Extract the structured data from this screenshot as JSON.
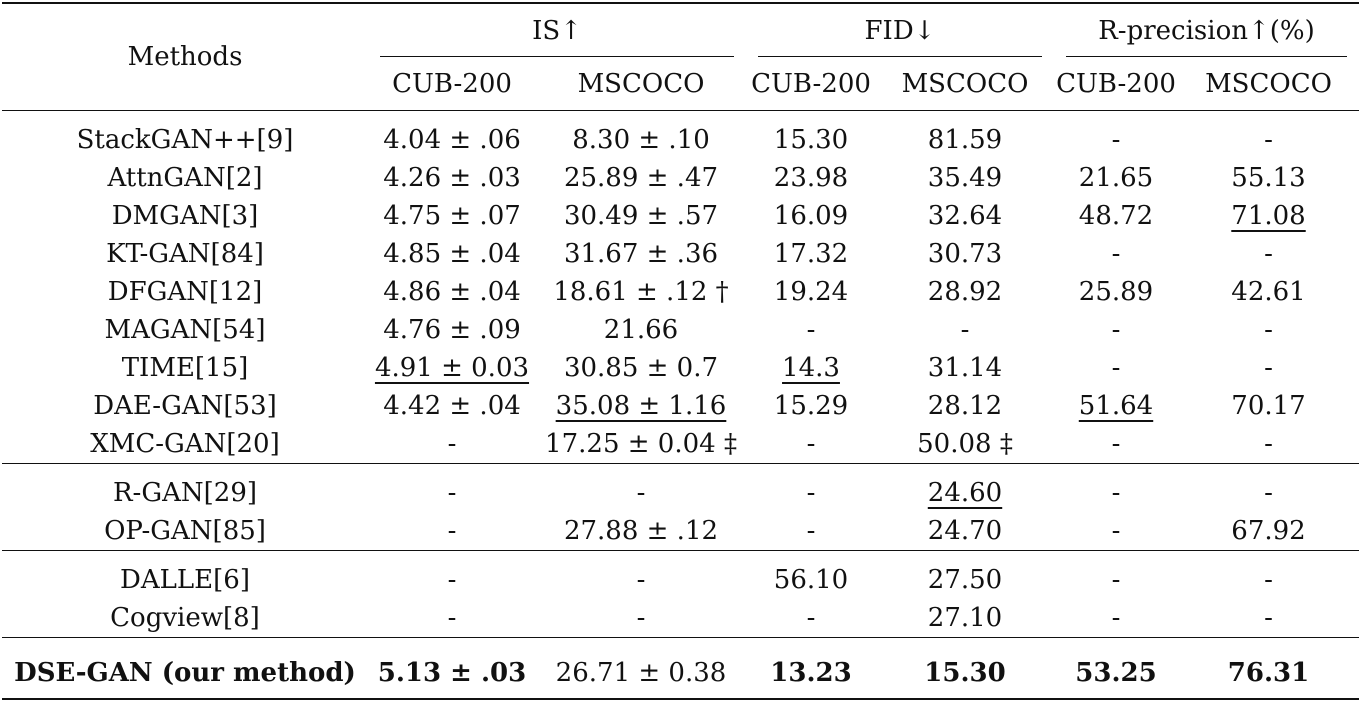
{
  "table": {
    "methods_header": "Methods",
    "groups": [
      {
        "label": "IS↑"
      },
      {
        "label": "FID↓"
      },
      {
        "label": "R-precision↑(%)"
      }
    ],
    "subheaders": [
      "CUB-200",
      "MSCOCO",
      "CUB-200",
      "MSCOCO",
      "CUB-200",
      "MSCOCO"
    ],
    "sections": [
      {
        "rows": [
          {
            "method": "StackGAN++[9]",
            "cells": [
              "4.04 ± .06",
              "8.30 ± .10",
              "15.30",
              "81.59",
              "-",
              "-"
            ]
          },
          {
            "method": "AttnGAN[2]",
            "cells": [
              "4.26 ± .03",
              "25.89 ± .47",
              "23.98",
              "35.49",
              "21.65",
              "55.13"
            ]
          },
          {
            "method": "DMGAN[3]",
            "cells": [
              "4.75 ± .07",
              "30.49 ± .57",
              "16.09",
              "32.64",
              "48.72",
              "71.08"
            ],
            "underline": [
              5
            ]
          },
          {
            "method": "KT-GAN[84]",
            "cells": [
              "4.85 ± .04",
              "31.67 ± .36",
              "17.32",
              "30.73",
              "-",
              "-"
            ]
          },
          {
            "method": "DFGAN[12]",
            "cells": [
              "4.86 ± .04",
              "18.61 ± .12 †",
              "19.24",
              "28.92",
              "25.89",
              "42.61"
            ]
          },
          {
            "method": "MAGAN[54]",
            "cells": [
              "4.76 ± .09",
              "21.66",
              "-",
              "-",
              "-",
              "-"
            ]
          },
          {
            "method": "TIME[15]",
            "cells": [
              "4.91 ± 0.03",
              "30.85 ± 0.7",
              "14.3",
              "31.14",
              "-",
              "-"
            ],
            "underline": [
              0,
              2
            ]
          },
          {
            "method": "DAE-GAN[53]",
            "cells": [
              "4.42 ± .04",
              "35.08 ± 1.16",
              "15.29",
              "28.12",
              "51.64",
              "70.17"
            ],
            "underline": [
              1,
              4
            ]
          },
          {
            "method": "XMC-GAN[20]",
            "cells": [
              "-",
              "17.25 ± 0.04 ‡",
              "-",
              "50.08 ‡",
              "-",
              "-"
            ]
          }
        ]
      },
      {
        "rows": [
          {
            "method": "R-GAN[29]",
            "cells": [
              "-",
              "-",
              "-",
              "24.60",
              "-",
              "-"
            ],
            "underline": [
              3
            ]
          },
          {
            "method": "OP-GAN[85]",
            "cells": [
              "-",
              "27.88 ± .12",
              "-",
              "24.70",
              "-",
              "67.92"
            ]
          }
        ]
      },
      {
        "rows": [
          {
            "method": "DALLE[6]",
            "cells": [
              "-",
              "-",
              "56.10",
              "27.50",
              "-",
              "-"
            ]
          },
          {
            "method": "Cogview[8]",
            "cells": [
              "-",
              "-",
              "-",
              "27.10",
              "-",
              "-"
            ]
          }
        ]
      },
      {
        "rows": [
          {
            "method": "DSE-GAN (our method)",
            "cells": [
              "5.13 ± .03",
              "26.71 ± 0.38",
              "13.23",
              "15.30",
              "53.25",
              "76.31"
            ],
            "bold_method": true,
            "bold": [
              0,
              2,
              3,
              4,
              5
            ]
          }
        ]
      }
    ]
  }
}
